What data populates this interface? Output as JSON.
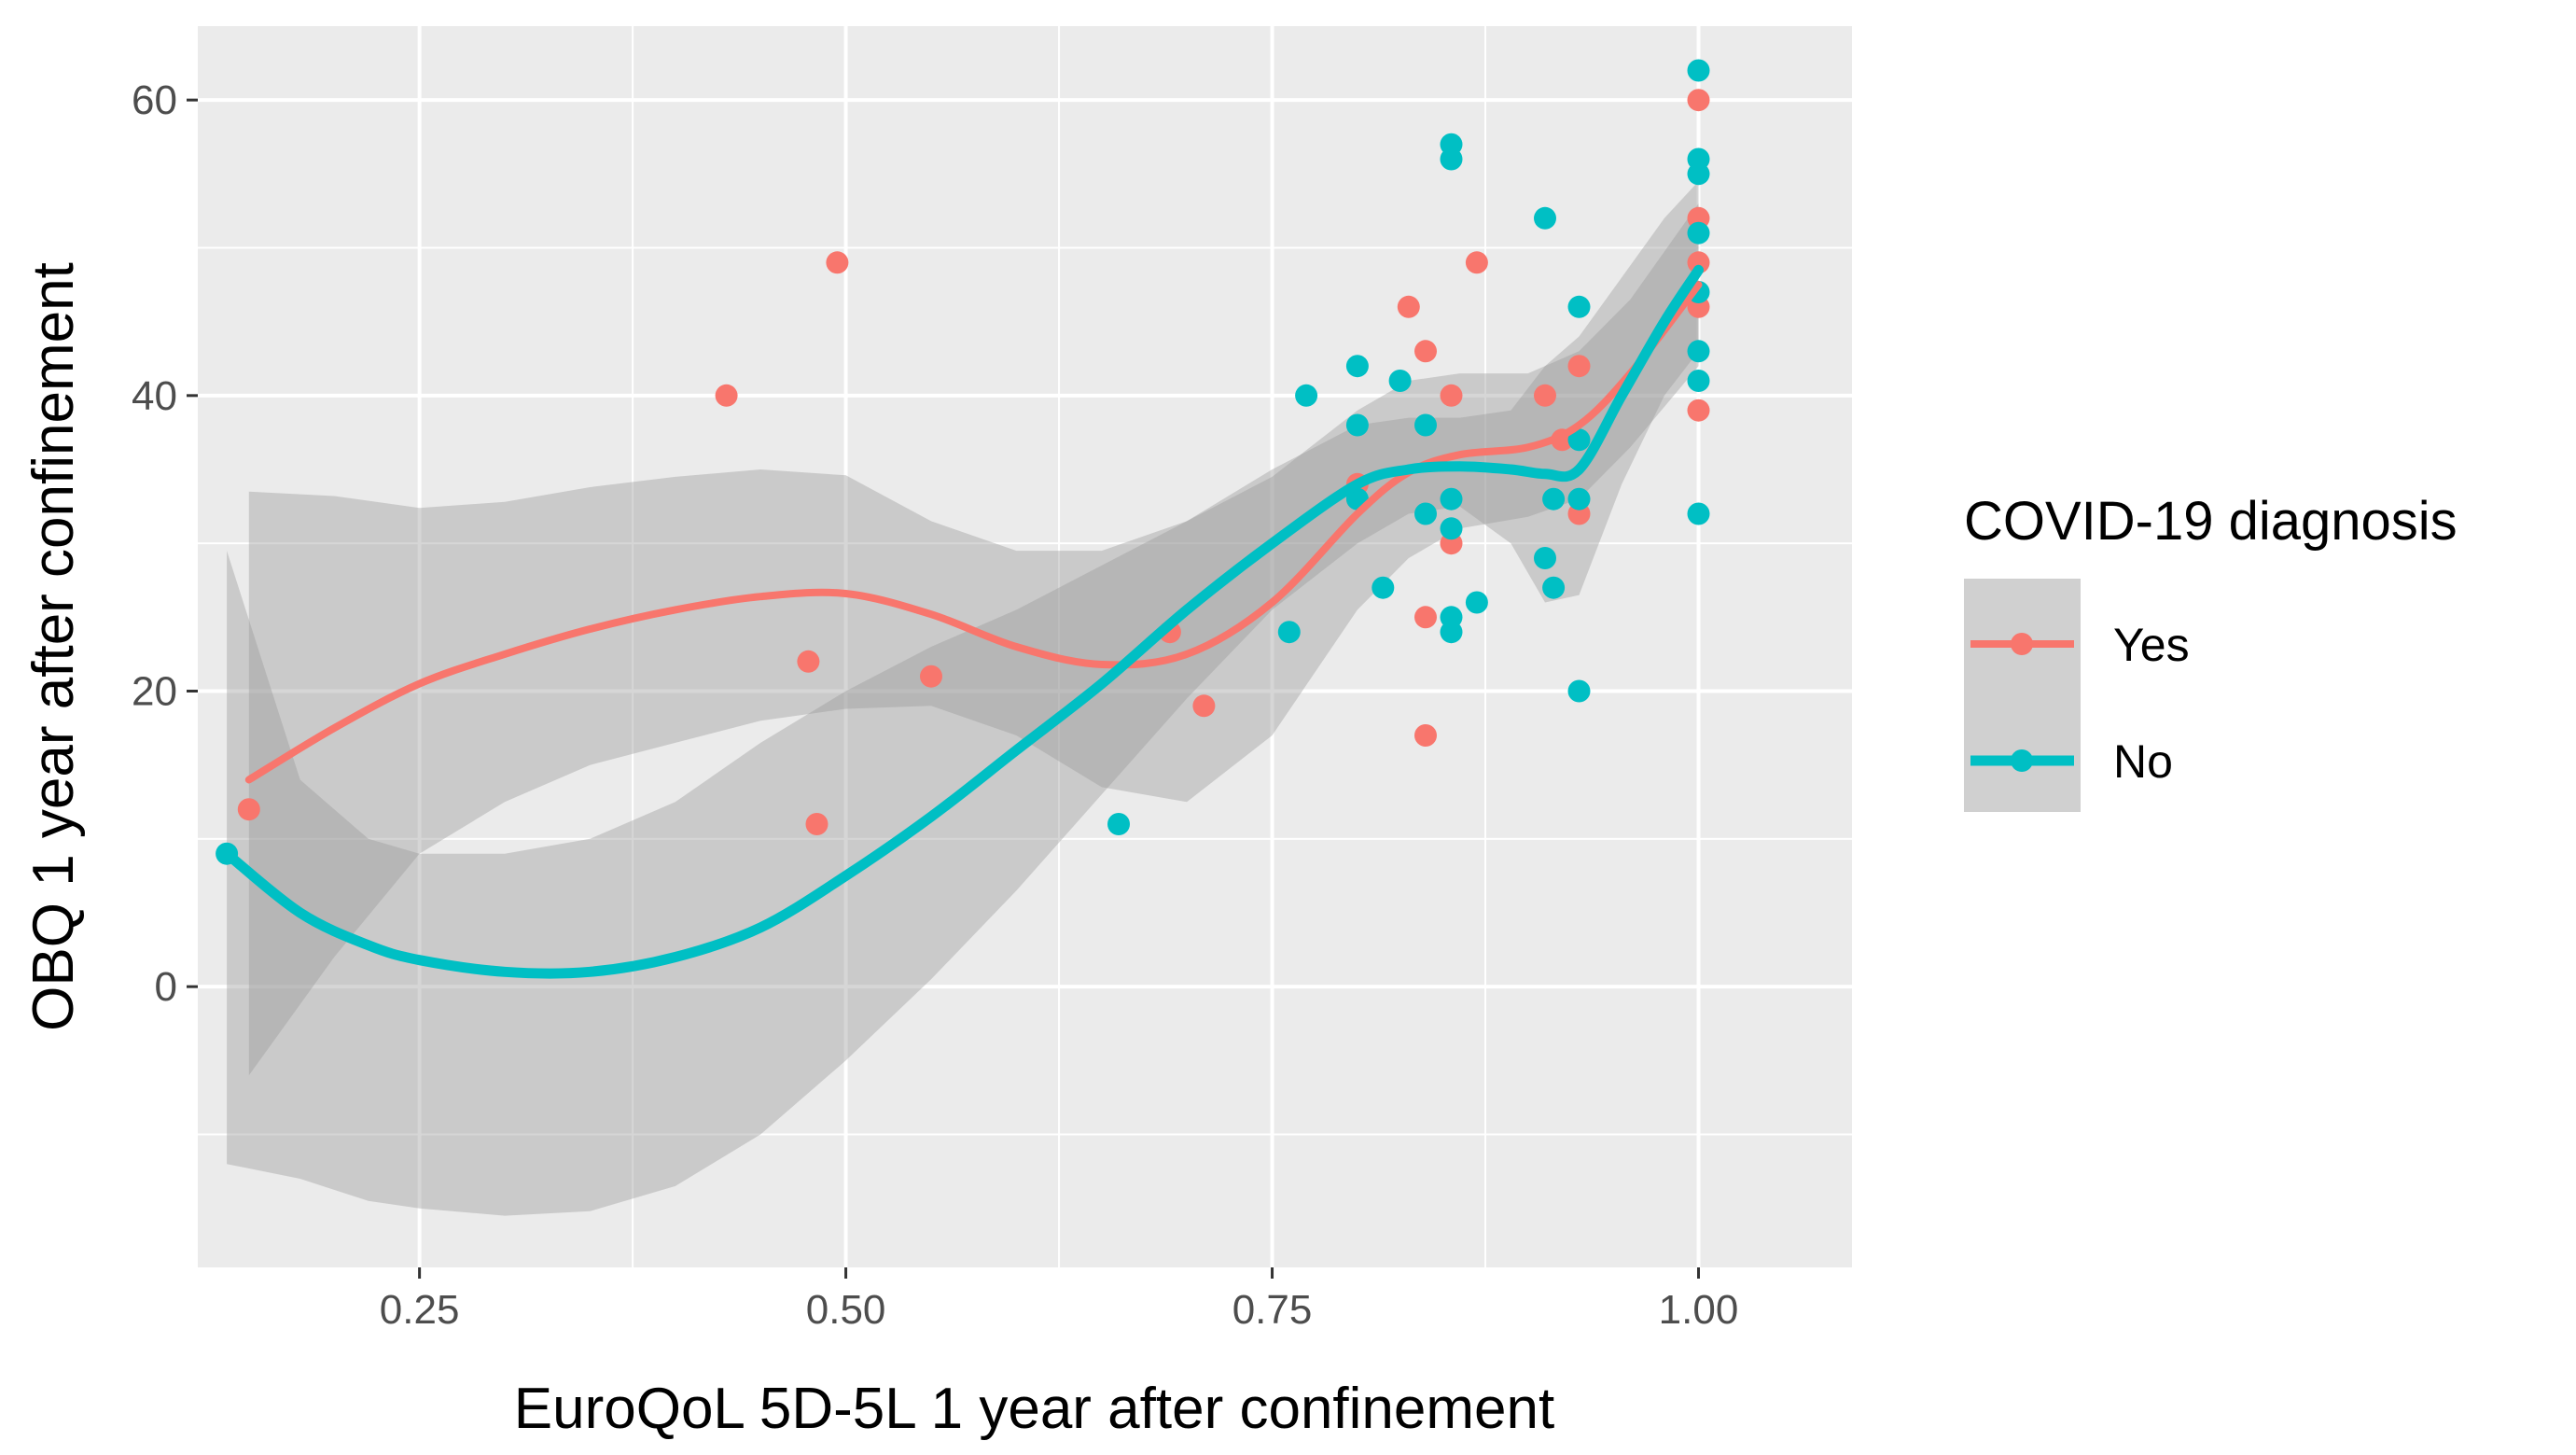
{
  "chart_data": {
    "type": "scatter",
    "title": "",
    "xlabel": "EuroQoL 5D-5L 1 year after confinement",
    "ylabel": "OBQ 1 year after confinement",
    "xlim": [
      0.12,
      1.09
    ],
    "ylim": [
      -19,
      65
    ],
    "xticks": [
      0.25,
      0.5,
      0.75,
      1.0
    ],
    "xtick_labels": [
      "0.25",
      "0.50",
      "0.75",
      "1.00"
    ],
    "xminor": [
      0.375,
      0.625,
      0.875
    ],
    "yticks": [
      0,
      20,
      40,
      60
    ],
    "ytick_labels": [
      "0",
      "20",
      "40",
      "60"
    ],
    "yminor": [
      -10,
      10,
      30,
      50
    ],
    "grid": true,
    "legend": {
      "title": "COVID-19 diagnosis",
      "position": "right"
    },
    "colors": {
      "Yes": "#F8766D",
      "No": "#00BFC4",
      "panel": "#EBEBEB",
      "ribbon": "#999999"
    },
    "series": [
      {
        "name": "Yes",
        "color": "#F8766D",
        "points": [
          [
            0.15,
            12
          ],
          [
            0.43,
            40
          ],
          [
            0.478,
            22
          ],
          [
            0.483,
            11
          ],
          [
            0.495,
            49
          ],
          [
            0.55,
            21
          ],
          [
            0.69,
            24
          ],
          [
            0.71,
            19
          ],
          [
            0.8,
            34
          ],
          [
            0.83,
            46
          ],
          [
            0.84,
            43
          ],
          [
            0.84,
            25
          ],
          [
            0.84,
            17
          ],
          [
            0.855,
            40
          ],
          [
            0.855,
            30
          ],
          [
            0.87,
            49
          ],
          [
            0.91,
            40
          ],
          [
            0.92,
            37
          ],
          [
            0.93,
            42
          ],
          [
            0.93,
            32
          ],
          [
            1.0,
            60
          ],
          [
            1.0,
            52
          ],
          [
            1.0,
            49
          ],
          [
            1.0,
            46
          ],
          [
            1.0,
            39
          ]
        ],
        "smooth": [
          [
            0.15,
            14
          ],
          [
            0.2,
            17.5
          ],
          [
            0.25,
            20.5
          ],
          [
            0.3,
            22.5
          ],
          [
            0.35,
            24.2
          ],
          [
            0.4,
            25.5
          ],
          [
            0.45,
            26.4
          ],
          [
            0.5,
            26.6
          ],
          [
            0.55,
            25.2
          ],
          [
            0.6,
            23.0
          ],
          [
            0.65,
            21.8
          ],
          [
            0.7,
            22.5
          ],
          [
            0.75,
            26.0
          ],
          [
            0.8,
            32.0
          ],
          [
            0.83,
            34.8
          ],
          [
            0.86,
            36.0
          ],
          [
            0.9,
            36.5
          ],
          [
            0.93,
            38.0
          ],
          [
            0.96,
            41.5
          ],
          [
            1.0,
            47.5
          ]
        ],
        "band_upper": [
          [
            0.15,
            33.5
          ],
          [
            0.2,
            33.2
          ],
          [
            0.25,
            32.4
          ],
          [
            0.3,
            32.8
          ],
          [
            0.35,
            33.8
          ],
          [
            0.4,
            34.5
          ],
          [
            0.45,
            35.0
          ],
          [
            0.5,
            34.6
          ],
          [
            0.55,
            31.5
          ],
          [
            0.6,
            29.5
          ],
          [
            0.65,
            29.5
          ],
          [
            0.7,
            31.5
          ],
          [
            0.75,
            34.5
          ],
          [
            0.8,
            39.0
          ],
          [
            0.83,
            41.0
          ],
          [
            0.86,
            41.5
          ],
          [
            0.9,
            41.5
          ],
          [
            0.93,
            43.0
          ],
          [
            0.96,
            46.5
          ],
          [
            1.0,
            53.0
          ]
        ],
        "band_lower": [
          [
            0.15,
            -6
          ],
          [
            0.2,
            2.0
          ],
          [
            0.25,
            9.0
          ],
          [
            0.3,
            12.5
          ],
          [
            0.35,
            15.0
          ],
          [
            0.4,
            16.5
          ],
          [
            0.45,
            18.0
          ],
          [
            0.5,
            18.8
          ],
          [
            0.55,
            19.0
          ],
          [
            0.6,
            17.0
          ],
          [
            0.65,
            13.5
          ],
          [
            0.7,
            12.5
          ],
          [
            0.75,
            17.0
          ],
          [
            0.8,
            25.5
          ],
          [
            0.83,
            29.0
          ],
          [
            0.86,
            31.0
          ],
          [
            0.9,
            31.8
          ],
          [
            0.93,
            33.0
          ],
          [
            0.96,
            36.5
          ],
          [
            1.0,
            42.0
          ]
        ]
      },
      {
        "name": "No",
        "color": "#00BFC4",
        "points": [
          [
            0.137,
            9
          ],
          [
            0.66,
            11
          ],
          [
            0.76,
            24
          ],
          [
            0.77,
            40
          ],
          [
            0.8,
            42
          ],
          [
            0.8,
            38
          ],
          [
            0.8,
            33
          ],
          [
            0.815,
            27
          ],
          [
            0.825,
            41
          ],
          [
            0.84,
            38
          ],
          [
            0.84,
            32
          ],
          [
            0.855,
            57
          ],
          [
            0.855,
            56
          ],
          [
            0.855,
            33
          ],
          [
            0.855,
            31
          ],
          [
            0.855,
            25
          ],
          [
            0.855,
            24
          ],
          [
            0.87,
            26
          ],
          [
            0.91,
            52
          ],
          [
            0.91,
            29
          ],
          [
            0.915,
            33
          ],
          [
            0.915,
            27
          ],
          [
            0.93,
            46
          ],
          [
            0.93,
            37
          ],
          [
            0.93,
            33
          ],
          [
            0.93,
            20
          ],
          [
            1.0,
            62
          ],
          [
            1.0,
            56
          ],
          [
            1.0,
            55
          ],
          [
            1.0,
            51
          ],
          [
            1.0,
            47
          ],
          [
            1.0,
            43
          ],
          [
            1.0,
            41
          ],
          [
            1.0,
            32
          ]
        ],
        "smooth": [
          [
            0.137,
            9
          ],
          [
            0.18,
            5.0
          ],
          [
            0.22,
            2.8
          ],
          [
            0.25,
            1.8
          ],
          [
            0.3,
            1.0
          ],
          [
            0.35,
            1.0
          ],
          [
            0.4,
            2.0
          ],
          [
            0.45,
            4.0
          ],
          [
            0.5,
            7.5
          ],
          [
            0.55,
            11.5
          ],
          [
            0.6,
            16.0
          ],
          [
            0.65,
            20.5
          ],
          [
            0.7,
            25.5
          ],
          [
            0.75,
            30.0
          ],
          [
            0.8,
            34.0
          ],
          [
            0.83,
            35.0
          ],
          [
            0.86,
            35.2
          ],
          [
            0.89,
            35.0
          ],
          [
            0.91,
            34.7
          ],
          [
            0.93,
            35.0
          ],
          [
            0.955,
            40.0
          ],
          [
            0.98,
            45.0
          ],
          [
            1.0,
            48.5
          ]
        ],
        "band_upper": [
          [
            0.137,
            29.5
          ],
          [
            0.18,
            14.0
          ],
          [
            0.22,
            10.0
          ],
          [
            0.25,
            9.0
          ],
          [
            0.3,
            9.0
          ],
          [
            0.35,
            10.0
          ],
          [
            0.4,
            12.5
          ],
          [
            0.45,
            16.5
          ],
          [
            0.5,
            20.0
          ],
          [
            0.55,
            23.0
          ],
          [
            0.6,
            25.5
          ],
          [
            0.65,
            28.5
          ],
          [
            0.7,
            31.5
          ],
          [
            0.75,
            35.0
          ],
          [
            0.8,
            38.0
          ],
          [
            0.83,
            38.5
          ],
          [
            0.86,
            38.5
          ],
          [
            0.89,
            39.0
          ],
          [
            0.91,
            42.0
          ],
          [
            0.93,
            44.0
          ],
          [
            0.955,
            48.0
          ],
          [
            0.98,
            52.0
          ],
          [
            1.0,
            54.5
          ]
        ],
        "band_lower": [
          [
            0.137,
            -12
          ],
          [
            0.18,
            -13.0
          ],
          [
            0.22,
            -14.5
          ],
          [
            0.25,
            -15.0
          ],
          [
            0.3,
            -15.5
          ],
          [
            0.35,
            -15.2
          ],
          [
            0.4,
            -13.5
          ],
          [
            0.45,
            -10.0
          ],
          [
            0.5,
            -5.0
          ],
          [
            0.55,
            0.5
          ],
          [
            0.6,
            6.5
          ],
          [
            0.65,
            13.0
          ],
          [
            0.7,
            19.5
          ],
          [
            0.75,
            25.5
          ],
          [
            0.8,
            30.0
          ],
          [
            0.83,
            32.0
          ],
          [
            0.86,
            32.5
          ],
          [
            0.89,
            30.0
          ],
          [
            0.91,
            26.0
          ],
          [
            0.93,
            26.5
          ],
          [
            0.955,
            34.0
          ],
          [
            0.98,
            40.0
          ],
          [
            1.0,
            43.0
          ]
        ]
      }
    ]
  }
}
